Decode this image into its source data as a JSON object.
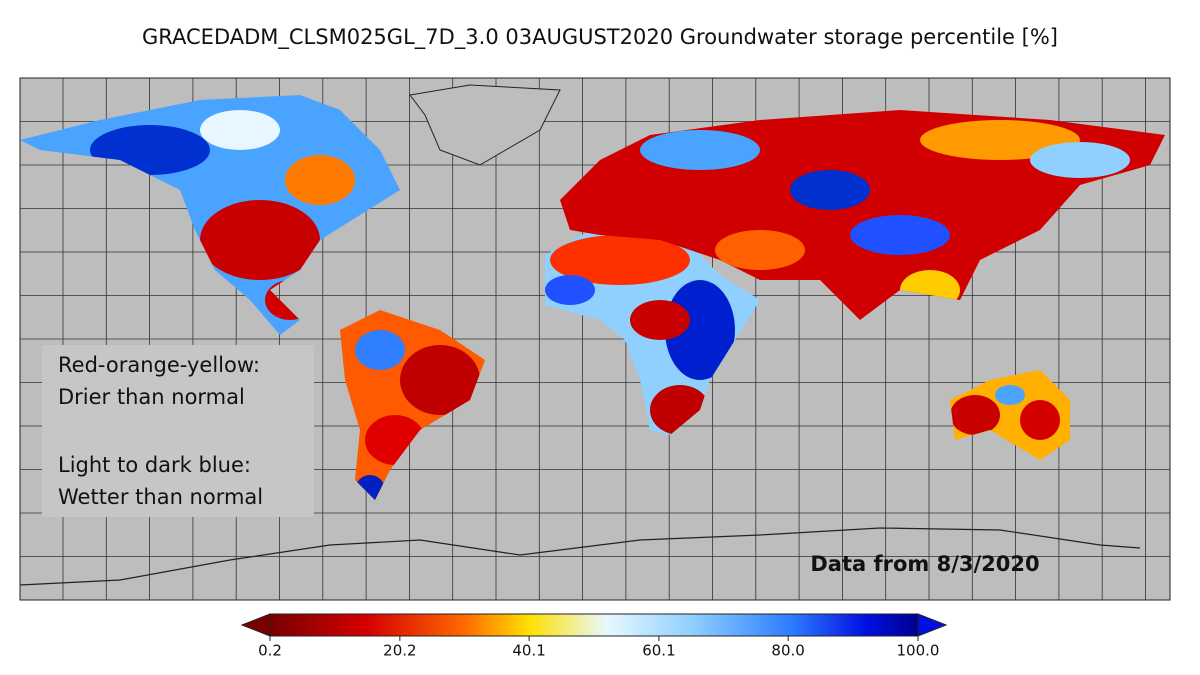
{
  "header": {
    "title": "GRACEDADM_CLSM025GL_7D_3.0 03AUGUST2020 Groundwater storage percentile [%]"
  },
  "annotations": {
    "dry_heading": "Red-orange-yellow:",
    "dry_text": "Drier than normal",
    "wet_heading": "Light to dark blue:",
    "wet_text": "Wetter than normal",
    "data_date": "Data from 8/3/2020"
  },
  "colorbar": {
    "range": [
      0.2,
      100
    ],
    "ticks": [
      0.2,
      20.2,
      40.1,
      60.1,
      {
        "value": 80,
        "label": "80.0"
      },
      {
        "value": 100,
        "label": "100.0"
      }
    ]
  }
}
